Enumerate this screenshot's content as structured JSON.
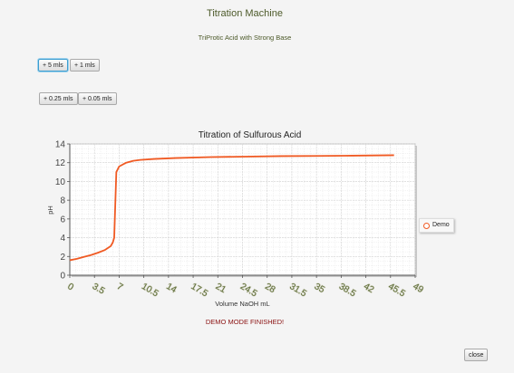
{
  "app": {
    "title": "Titration Machine",
    "subtitle": "TriProtic Acid with Strong Base"
  },
  "controls": {
    "row1": [
      {
        "label": "+ 5 mls",
        "focused": true
      },
      {
        "label": "+ 1 mls",
        "focused": false
      }
    ],
    "row2": [
      {
        "label": "+ 0.25 mls",
        "focused": false
      },
      {
        "label": "+ 0.05 mls",
        "focused": false
      }
    ],
    "close_label": "close"
  },
  "status_text": "DEMO MODE FINISHED!",
  "colors": {
    "series": "#f05a23",
    "title_text": "#4d5a2a",
    "status_text": "#8a1010"
  },
  "chart_data": {
    "type": "line",
    "title": "Titration of Sulfurous Acid",
    "xlabel": "Volume NaOH mL",
    "ylabel": "pH",
    "xlim": [
      0,
      49
    ],
    "ylim": [
      0,
      14
    ],
    "x_ticks": [
      "0",
      "3.5",
      "7",
      "10.5",
      "14",
      "17.5",
      "21",
      "24.5",
      "28",
      "31.5",
      "35",
      "38.5",
      "42",
      "45.5",
      "49"
    ],
    "y_ticks": [
      "0",
      "2",
      "4",
      "6",
      "8",
      "10",
      "12",
      "14"
    ],
    "grid": true,
    "legend_position": "right",
    "series": [
      {
        "name": "Demo",
        "x": [
          0,
          1,
          2,
          3,
          4,
          5,
          5.8,
          6.1,
          6.3,
          6.45,
          6.6,
          7,
          8,
          9,
          10,
          12,
          15,
          20,
          25,
          30,
          35,
          40,
          46
        ],
        "y": [
          1.6,
          1.75,
          1.95,
          2.15,
          2.4,
          2.7,
          3.1,
          3.5,
          4.0,
          7.5,
          11.0,
          11.6,
          12.0,
          12.2,
          12.3,
          12.4,
          12.5,
          12.6,
          12.65,
          12.7,
          12.72,
          12.75,
          12.8
        ]
      }
    ]
  }
}
